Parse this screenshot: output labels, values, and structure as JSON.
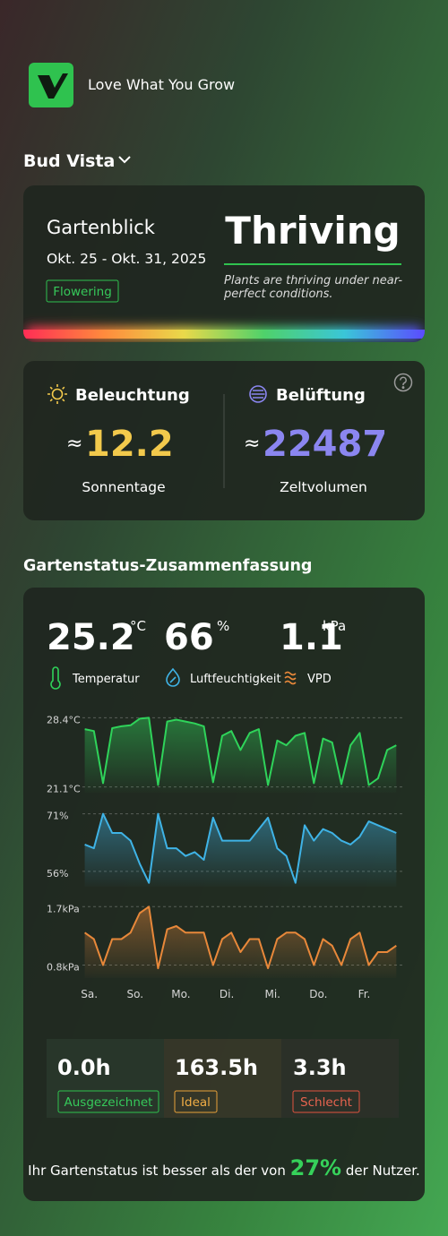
{
  "brand": "Love What You Grow",
  "site": "Bud Vista",
  "overview": {
    "title": "Gartenblick",
    "dates": "Okt. 25 - Okt. 31, 2025",
    "stage": "Flowering",
    "status": "Thriving",
    "description": "Plants are thriving under near-perfect conditions."
  },
  "metrics": {
    "lighting": {
      "label": "Beleuchtung",
      "approx": "≈",
      "value": "12.2",
      "unit": "Sonnentage"
    },
    "ventilation": {
      "label": "Belüftung",
      "approx": "≈",
      "value": "22487",
      "unit": "Zeltvolumen"
    }
  },
  "summary": {
    "title": "Gartenstatus-Zusammenfassung",
    "stats": [
      {
        "value": "25.2",
        "unit": "°C",
        "label": "Temperatur"
      },
      {
        "value": "66",
        "unit": "%",
        "label": "Luftfeuchtigkeit"
      },
      {
        "value": "1.1",
        "unit": "kPa",
        "label": "VPD"
      }
    ],
    "hours": [
      {
        "value": "0.0h",
        "label": "Ausgezeichnet"
      },
      {
        "value": "163.5h",
        "label": "Ideal"
      },
      {
        "value": "3.3h",
        "label": "Schlecht"
      }
    ],
    "footer": {
      "before": "Ihr Gartenstatus ist besser als der von",
      "highlight": "27%",
      "after": "der Nutzer."
    }
  },
  "chart_data": [
    {
      "type": "line",
      "color": "#2fd35a",
      "xlim": [
        -0.15,
        6.85
      ],
      "ylim": [
        20.5,
        29
      ],
      "yticks": [
        {
          "value": 28.4,
          "label": "28.4°C"
        },
        {
          "value": 21.1,
          "label": "21.1°C"
        }
      ],
      "x": [
        -0.1,
        0.1,
        0.3,
        0.5,
        0.7,
        0.9,
        1.1,
        1.3,
        1.5,
        1.7,
        1.9,
        2.1,
        2.3,
        2.5,
        2.7,
        2.9,
        3.1,
        3.3,
        3.5,
        3.7,
        3.9,
        4.1,
        4.3,
        4.5,
        4.7,
        4.9,
        5.1,
        5.3,
        5.5,
        5.7,
        5.9,
        6.1,
        6.3,
        6.5,
        6.7
      ],
      "values": [
        27.2,
        27.0,
        21.5,
        27.3,
        27.5,
        27.6,
        28.3,
        28.4,
        21.3,
        28.0,
        28.2,
        28.0,
        27.8,
        27.5,
        21.6,
        26.5,
        27.0,
        25.0,
        26.8,
        27.2,
        21.3,
        26.0,
        25.5,
        26.5,
        26.8,
        21.5,
        26.2,
        25.8,
        21.4,
        25.5,
        26.8,
        21.3,
        22.0,
        25.0,
        25.5
      ]
    },
    {
      "type": "line",
      "color": "#3fb3e6",
      "xlim": [
        -0.15,
        6.85
      ],
      "ylim": [
        52,
        73
      ],
      "yticks": [
        {
          "value": 71,
          "label": "71%"
        },
        {
          "value": 56,
          "label": "56%"
        }
      ],
      "x": [
        -0.1,
        0.1,
        0.3,
        0.5,
        0.7,
        0.9,
        1.1,
        1.3,
        1.5,
        1.7,
        1.9,
        2.1,
        2.3,
        2.5,
        2.7,
        2.9,
        3.1,
        3.3,
        3.5,
        3.7,
        3.9,
        4.1,
        4.3,
        4.5,
        4.7,
        4.9,
        5.1,
        5.3,
        5.5,
        5.7,
        5.9,
        6.1,
        6.3,
        6.5,
        6.7
      ],
      "values": [
        63,
        62,
        71,
        66,
        66,
        64,
        58,
        53,
        71,
        62,
        62,
        60,
        61,
        59,
        70,
        64,
        64,
        64,
        64,
        67,
        70,
        62,
        60,
        53,
        68,
        64,
        67,
        66,
        64,
        63,
        65,
        69,
        68,
        67,
        66
      ]
    },
    {
      "type": "line",
      "color": "#e8883a",
      "xlim": [
        -0.15,
        6.85
      ],
      "ylim": [
        0.6,
        1.8
      ],
      "yticks": [
        {
          "value": 1.7,
          "label": "1.7kPa"
        },
        {
          "value": 0.8,
          "label": "0.8kPa"
        }
      ],
      "xticks": [
        {
          "value": 0,
          "label": "Sa."
        },
        {
          "value": 1,
          "label": "So."
        },
        {
          "value": 2,
          "label": "Mo."
        },
        {
          "value": 3,
          "label": "Di."
        },
        {
          "value": 4,
          "label": "Mi."
        },
        {
          "value": 5,
          "label": "Do."
        },
        {
          "value": 6,
          "label": "Fr."
        }
      ],
      "x": [
        -0.1,
        0.1,
        0.3,
        0.5,
        0.7,
        0.9,
        1.1,
        1.3,
        1.5,
        1.7,
        1.9,
        2.1,
        2.3,
        2.5,
        2.7,
        2.9,
        3.1,
        3.3,
        3.5,
        3.7,
        3.9,
        4.1,
        4.3,
        4.5,
        4.7,
        4.9,
        5.1,
        5.3,
        5.5,
        5.7,
        5.9,
        6.1,
        6.3,
        6.5,
        6.7
      ],
      "values": [
        1.3,
        1.2,
        0.8,
        1.2,
        1.2,
        1.3,
        1.6,
        1.7,
        0.75,
        1.35,
        1.4,
        1.3,
        1.3,
        1.3,
        0.8,
        1.2,
        1.3,
        1.0,
        1.2,
        1.2,
        0.75,
        1.2,
        1.3,
        1.3,
        1.2,
        0.8,
        1.2,
        1.1,
        0.8,
        1.2,
        1.3,
        0.8,
        1.0,
        1.0,
        1.1
      ]
    }
  ]
}
